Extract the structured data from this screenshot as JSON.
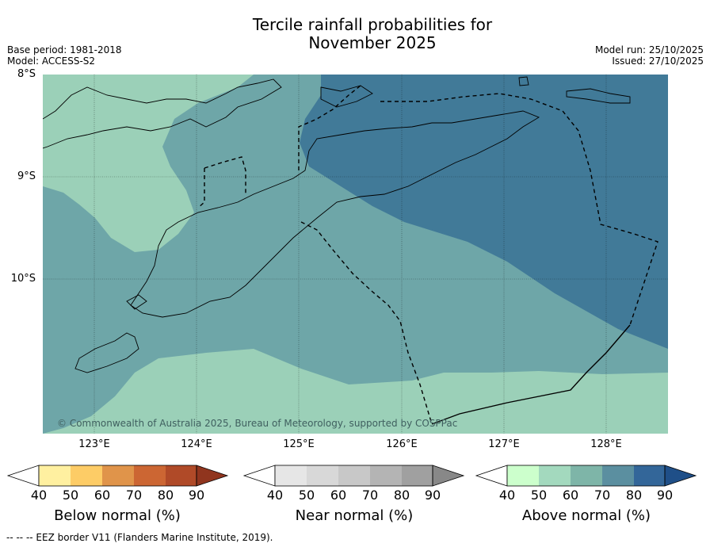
{
  "title_line1": "Tercile rainfall probabilities for",
  "title_line2": "November 2025",
  "base_period": "Base period: 1981-2018",
  "model": "Model: ACCESS-S2",
  "model_run": "Model run: 25/10/2025",
  "issued": "Issued: 27/10/2025",
  "lat_labels": [
    "8°S",
    "9°S",
    "10°S"
  ],
  "lon_labels": [
    "123°E",
    "124°E",
    "125°E",
    "126°E",
    "127°E",
    "128°E"
  ],
  "copyright": "© Commonwealth of Australia 2025, Bureau of Meteorology, supported by COSPPac",
  "colorbars": [
    {
      "label": "Below normal (%)",
      "ticks": [
        "40",
        "50",
        "60",
        "70",
        "80",
        "90"
      ],
      "colors": [
        "#fff0a0",
        "#fdcc66",
        "#e0944a",
        "#cc6633",
        "#b04a28",
        "#90351e"
      ]
    },
    {
      "label": "Near normal (%)",
      "ticks": [
        "40",
        "50",
        "60",
        "70",
        "80",
        "90"
      ],
      "colors": [
        "#e6e6e6",
        "#d8d8d8",
        "#c8c8c8",
        "#b4b4b4",
        "#a0a0a0",
        "#888888"
      ]
    },
    {
      "label": "Above normal (%)",
      "ticks": [
        "40",
        "50",
        "60",
        "70",
        "80",
        "90"
      ],
      "colors": [
        "#ccffcc",
        "#a3d9be",
        "#7eb5a8",
        "#5b8fa0",
        "#336699",
        "#1f4f88"
      ]
    }
  ],
  "map_colors": {
    "band40_50": "#9bd0b8",
    "band50_60": "#6ea6a8",
    "band60_70": "#417a98"
  },
  "footer": "--  --  -- EEZ border V11 (Flanders Marine Institute, 2019)."
}
